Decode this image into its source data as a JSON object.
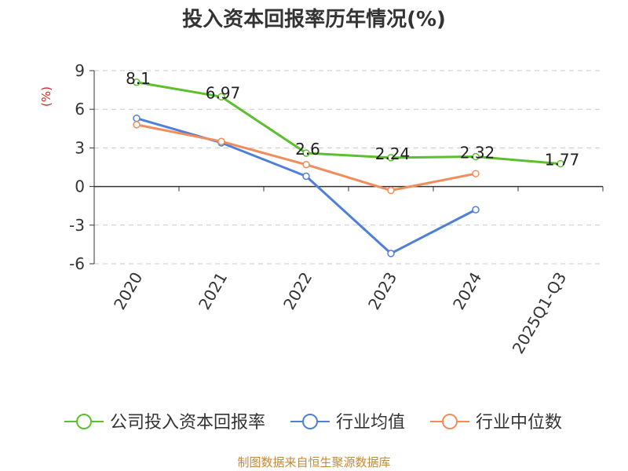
{
  "chart_data": {
    "type": "line",
    "title": "投入资本回报率历年情况(%)",
    "ylabel": "(%)",
    "xlabel": "",
    "categories": [
      "2020",
      "2021",
      "2022",
      "2023",
      "2024",
      "2025Q1-Q3"
    ],
    "ylim": [
      -6,
      9
    ],
    "yticks": [
      9,
      6,
      3,
      0,
      -3,
      -6
    ],
    "grid": true,
    "legend_position": "bottom",
    "series": [
      {
        "name": "公司投入资本回报率",
        "color": "#5dbf2b",
        "values": [
          8.1,
          6.97,
          2.6,
          2.24,
          2.32,
          1.77
        ],
        "labels": [
          "8.1",
          "6.97",
          "2.6",
          "2.24",
          "2.32",
          "1.77"
        ]
      },
      {
        "name": "行业均值",
        "color": "#4f7fd9",
        "values": [
          5.3,
          3.4,
          0.8,
          -5.2,
          -1.8,
          null
        ]
      },
      {
        "name": "行业中位数",
        "color": "#f28c5a",
        "values": [
          4.8,
          3.5,
          1.7,
          -0.3,
          1.0,
          null
        ]
      }
    ]
  },
  "source": "制图数据来自恒生聚源数据库"
}
